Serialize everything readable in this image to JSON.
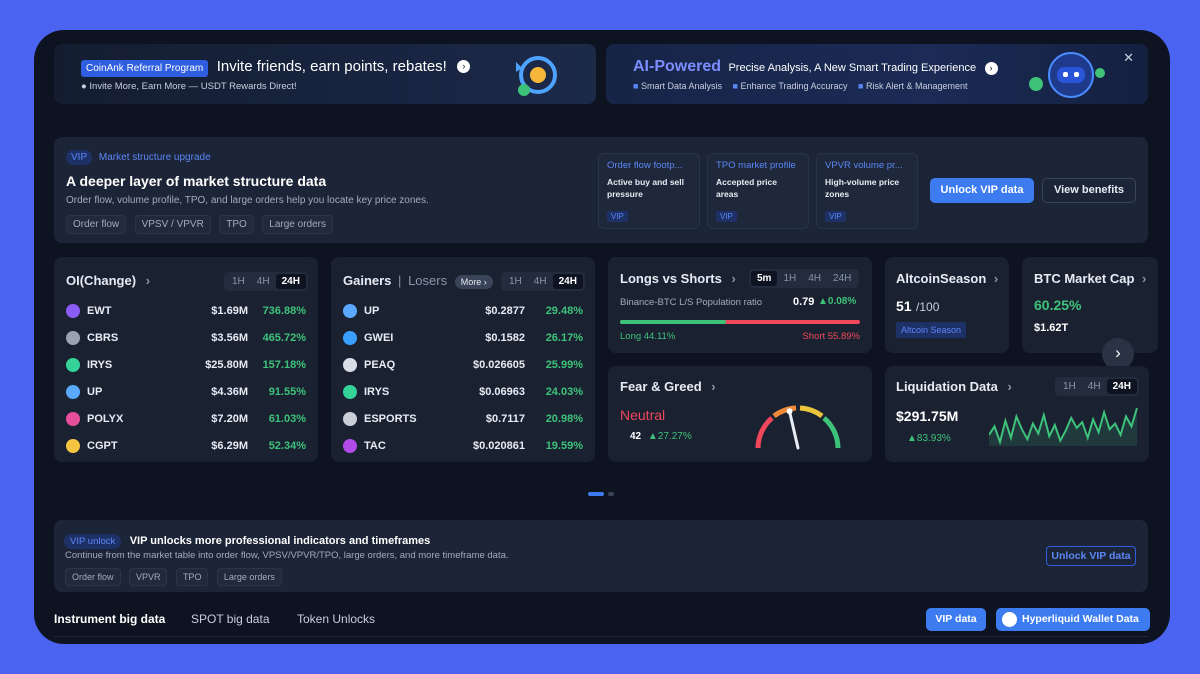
{
  "referral": {
    "badge": "CoinAnk Referral Program",
    "headline": "Invite friends, earn points, rebates!",
    "sub": "Invite More, Earn More — USDT Rewards Direct!"
  },
  "ai_banner": {
    "brand": "AI-Powered",
    "headline": "Precise Analysis, A New Smart Trading Experience",
    "features": [
      "Smart Data Analysis",
      "Enhance Trading Accuracy",
      "Risk Alert & Management"
    ]
  },
  "vip_block": {
    "badge": "VIP",
    "kicker": "Market structure upgrade",
    "title": "A deeper layer of market structure data",
    "desc": "Order flow, volume profile, TPO, and large orders help you locate key price zones.",
    "chips": [
      "Order flow",
      "VPSV / VPVR",
      "TPO",
      "Large orders"
    ],
    "features": [
      {
        "title": "Order flow footp...",
        "desc": "Active buy and sell pressure",
        "tag": "VIP"
      },
      {
        "title": "TPO market profile",
        "desc": "Accepted price areas",
        "tag": "VIP"
      },
      {
        "title": "VPVR volume pr...",
        "desc": "High-volume price zones",
        "tag": "VIP"
      }
    ],
    "unlock": "Unlock VIP data",
    "benefits": "View benefits"
  },
  "oi": {
    "title": "OI(Change)",
    "tabs": [
      "1H",
      "4H",
      "24H"
    ],
    "rows": [
      {
        "name": "EWT",
        "value": "$1.69M",
        "pct": "736.88%",
        "color": "#8b5cf6"
      },
      {
        "name": "CBRS",
        "value": "$3.56M",
        "pct": "465.72%",
        "color": "#9aa3b2"
      },
      {
        "name": "IRYS",
        "value": "$25.80M",
        "pct": "157.18%",
        "color": "#36d399"
      },
      {
        "name": "UP",
        "value": "$4.36M",
        "pct": "91.55%",
        "color": "#5aa9ff"
      },
      {
        "name": "POLYX",
        "value": "$7.20M",
        "pct": "61.03%",
        "color": "#e64d9a"
      },
      {
        "name": "CGPT",
        "value": "$6.29M",
        "pct": "52.34%",
        "color": "#f5c542"
      }
    ]
  },
  "gainers": {
    "title": "Gainers",
    "title2": "Losers",
    "more": "More",
    "tabs": [
      "1H",
      "4H",
      "24H"
    ],
    "rows": [
      {
        "name": "UP",
        "value": "$0.2877",
        "pct": "29.48%",
        "color": "#5aa9ff"
      },
      {
        "name": "GWEI",
        "value": "$0.1582",
        "pct": "26.17%",
        "color": "#3aa0ff"
      },
      {
        "name": "PEAQ",
        "value": "$0.026605",
        "pct": "25.99%",
        "color": "#d9dde6"
      },
      {
        "name": "IRYS",
        "value": "$0.06963",
        "pct": "24.03%",
        "color": "#36d399"
      },
      {
        "name": "ESPORTS",
        "value": "$0.7117",
        "pct": "20.98%",
        "color": "#c9ced8"
      },
      {
        "name": "TAC",
        "value": "$0.020861",
        "pct": "19.59%",
        "color": "#b14be8"
      }
    ]
  },
  "longs_shorts": {
    "title": "Longs vs Shorts",
    "tabs": [
      "5m",
      "1H",
      "4H",
      "24H"
    ],
    "pair": "Binance-BTC L/S Population ratio",
    "ratio": "0.79",
    "change": "0.08%",
    "long": "Long 44.11%",
    "short": "Short 55.89%",
    "long_share": 0.4411
  },
  "altcoin": {
    "title": "AltcoinSeason",
    "score": "51",
    "max": "/100",
    "label": "Altcoin Season"
  },
  "btc_cap": {
    "title": "BTC Market Cap",
    "pct": "60.25%",
    "value": "$1.62T"
  },
  "fear_greed": {
    "title": "Fear & Greed",
    "label": "Neutral",
    "value": "42",
    "change": "27.27%",
    "score": 42
  },
  "liquidation": {
    "title": "Liquidation Data",
    "tabs": [
      "1H",
      "4H",
      "24H"
    ],
    "value": "$291.75M",
    "change": "83.93%",
    "spark": [
      14,
      20,
      9,
      24,
      12,
      27,
      18,
      11,
      22,
      15,
      28,
      13,
      21,
      10,
      17,
      26,
      19,
      23,
      12,
      25,
      16,
      30,
      18,
      22,
      14,
      27,
      20,
      33
    ]
  },
  "vip_unlock": {
    "badge": "VIP unlock",
    "title": "VIP unlocks more professional indicators and timeframes",
    "desc": "Continue from the market table into order flow, VPSV/VPVR/TPO, large orders, and more timeframe data.",
    "chips": [
      "Order flow",
      "VPVR",
      "TPO",
      "Large orders"
    ],
    "button": "Unlock VIP data"
  },
  "bottom_tabs": [
    "Instrument big data",
    "SPOT big data",
    "Token Unlocks"
  ],
  "vip_data_btn": "VIP data",
  "hyperliquid_btn": "Hyperliquid Wallet Data"
}
